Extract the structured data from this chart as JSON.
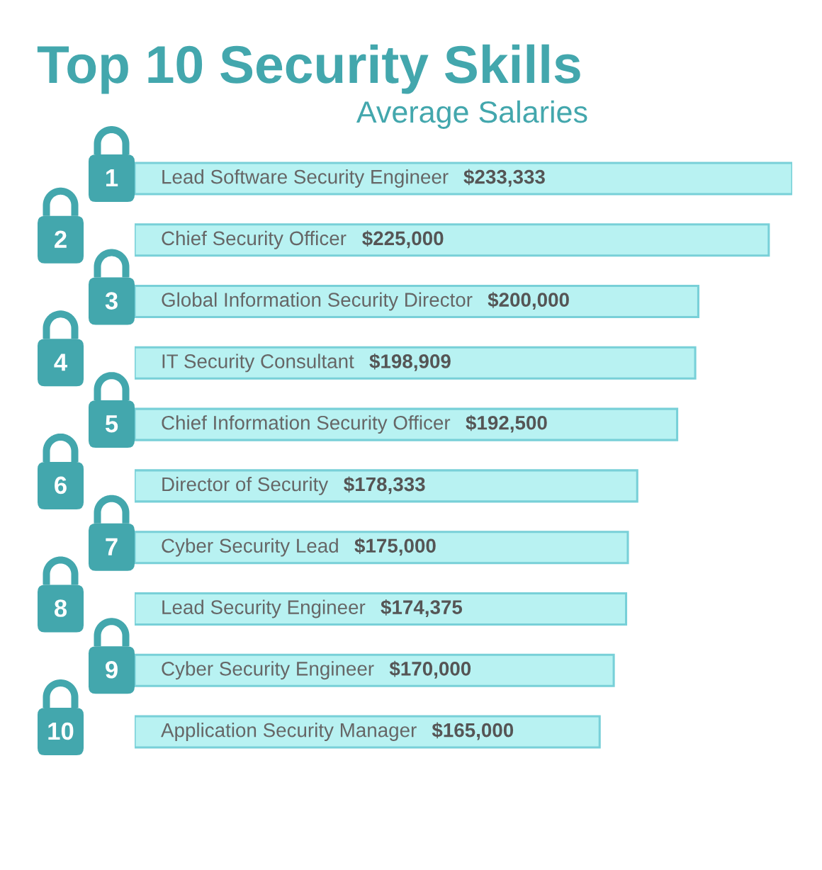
{
  "chart_data": {
    "type": "bar",
    "orientation": "horizontal",
    "title": "Top 10 Security Skills",
    "subtitle": "Average Salaries",
    "categories": [
      "Lead Software Security Engineer",
      "Chief Security Officer",
      "Global Information Security Director",
      "IT Security Consultant",
      "Chief Information Security Officer",
      "Director of Security",
      "Cyber Security Lead",
      "Lead Security Engineer",
      "Cyber Security Engineer",
      "Application Security Manager"
    ],
    "values": [
      233333,
      225000,
      200000,
      198909,
      192500,
      178333,
      175000,
      174375,
      170000,
      165000
    ],
    "value_labels": [
      "$233,333",
      "$225,000",
      "$200,000",
      "$198,909",
      "$192,500",
      "$178,333",
      "$175,000",
      "$174,375",
      "$170,000",
      "$165,000"
    ],
    "color": "#b8f2f2",
    "xlim": [
      0,
      233333
    ],
    "tick_labels": "y",
    "annotations": [
      "1",
      "2",
      "3",
      "4",
      "5",
      "6",
      "7",
      "8",
      "9",
      "10"
    ]
  }
}
